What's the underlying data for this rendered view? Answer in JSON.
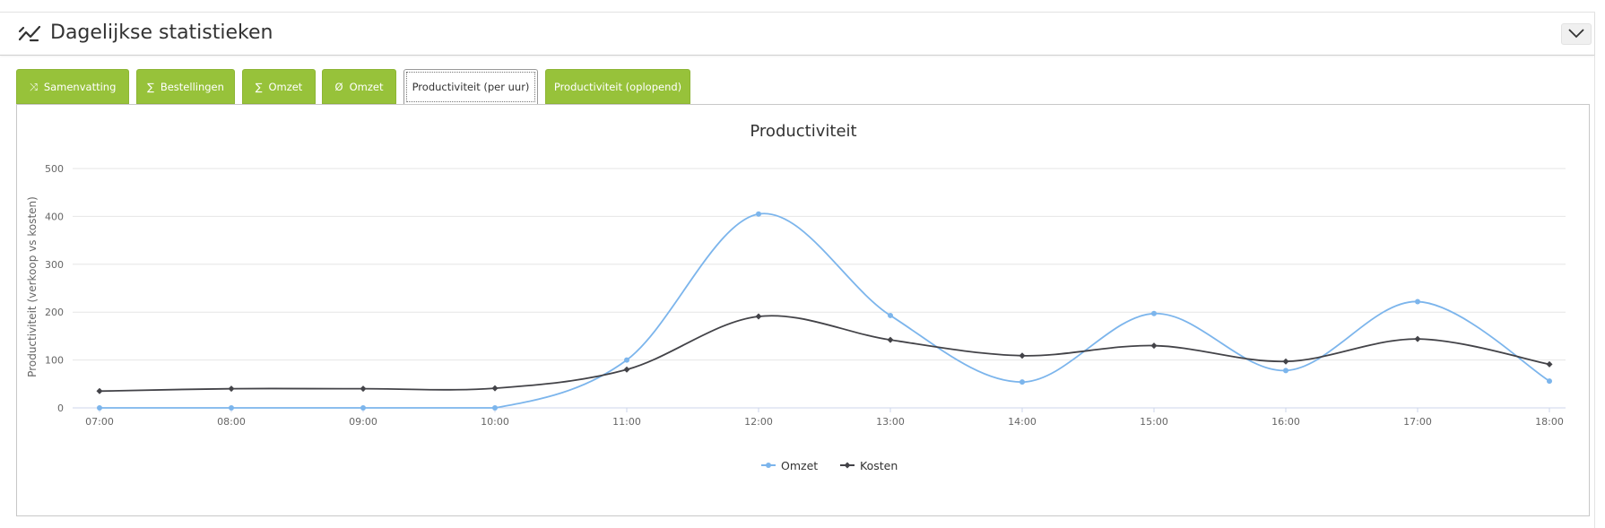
{
  "header": {
    "title": "Dagelijkse statistieken",
    "icon": "line-chart-icon",
    "collapse_icon": "chevron-down-icon"
  },
  "tabs": [
    {
      "label": "Samenvatting",
      "icon": "shuffle-icon",
      "glyph": "⤨",
      "active": false
    },
    {
      "label": "Bestellingen",
      "icon": "sum-icon",
      "glyph": "∑",
      "active": false
    },
    {
      "label": "Omzet",
      "icon": "sum-icon",
      "glyph": "∑",
      "active": false
    },
    {
      "label": "Omzet",
      "icon": "average-icon",
      "glyph": "Ø",
      "active": false
    },
    {
      "label": "Productiviteit (per uur)",
      "icon": "",
      "glyph": "",
      "active": true
    },
    {
      "label": "Productiviteit (oplopend)",
      "icon": "",
      "glyph": "",
      "active": false
    }
  ],
  "colors": {
    "tab_green": "#97c23a",
    "omzet": "#7cb5ec",
    "kosten": "#434348"
  },
  "chart_data": {
    "type": "line",
    "smooth": true,
    "title": "Productiviteit",
    "ylabel": "Productiviteit (verkoop vs kosten)",
    "xlabel": "",
    "categories": [
      "07:00",
      "08:00",
      "09:00",
      "10:00",
      "11:00",
      "12:00",
      "13:00",
      "14:00",
      "15:00",
      "16:00",
      "17:00",
      "18:00"
    ],
    "ylim": [
      0,
      500
    ],
    "yticks": [
      0,
      100,
      200,
      300,
      400,
      500
    ],
    "grid": true,
    "legend_position": "bottom-center",
    "series": [
      {
        "name": "Omzet",
        "color": "#7cb5ec",
        "marker": "circle",
        "values": [
          0,
          0,
          0,
          0,
          100,
          405,
          193,
          54,
          197,
          78,
          222,
          56
        ]
      },
      {
        "name": "Kosten",
        "color": "#434348",
        "marker": "diamond",
        "values": [
          35,
          40,
          40,
          41,
          80,
          191,
          142,
          109,
          130,
          97,
          144,
          91
        ]
      }
    ]
  }
}
